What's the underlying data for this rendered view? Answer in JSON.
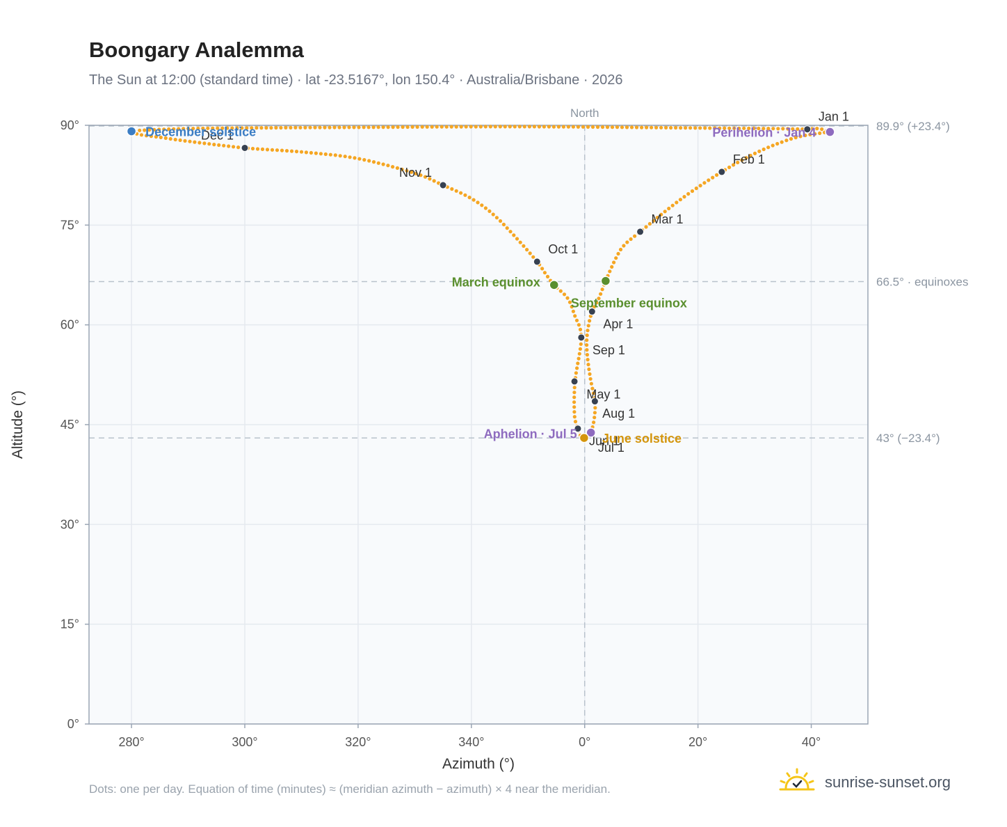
{
  "header": {
    "title": "Boongary Analemma",
    "subtitle": "The Sun at 12:00 (standard time) · lat -23.5167°, lon 150.4° · Australia/Brisbane · 2026"
  },
  "footer": {
    "note": "Dots: one per day. Equation of time (minutes) ≈ (meridian azimuth − azimuth) × 4 near the meridian.",
    "brand": "sunrise-sunset.org"
  },
  "colors": {
    "path": "#f5a623",
    "month_marker": "#374151",
    "december_solstice": "#3b7dc4",
    "june_solstice": "#d4950c",
    "equinox": "#5a8f2e",
    "apsis": "#8e6bbf",
    "grid": "#e5e9ef",
    "reference_line": "#b8c2cc",
    "plot_background": "#f8fafc",
    "brand_sun": "#f5c518"
  },
  "icons": {
    "brand": "sun-logo-icon"
  },
  "chart_data": {
    "type": "scatter",
    "xlabel": "Azimuth (°)",
    "ylabel": "Altitude (°)",
    "xlim": [
      -87.5,
      50
    ],
    "ylim": [
      0,
      90
    ],
    "x_ticks": [
      {
        "value": -80,
        "label": "280°"
      },
      {
        "value": -60,
        "label": "300°"
      },
      {
        "value": -40,
        "label": "320°"
      },
      {
        "value": -20,
        "label": "340°"
      },
      {
        "value": 0,
        "label": "0°"
      },
      {
        "value": 20,
        "label": "20°"
      },
      {
        "value": 40,
        "label": "40°"
      }
    ],
    "y_ticks": [
      {
        "value": 0,
        "label": "0°"
      },
      {
        "value": 15,
        "label": "15°"
      },
      {
        "value": 30,
        "label": "30°"
      },
      {
        "value": 45,
        "label": "45°"
      },
      {
        "value": 60,
        "label": "60°"
      },
      {
        "value": 75,
        "label": "75°"
      },
      {
        "value": 90,
        "label": "90°"
      }
    ],
    "grid": true,
    "meridian": {
      "x": 0,
      "label": "North"
    },
    "reference_lines": [
      {
        "y": 89.9,
        "label": "89.9° (+23.4°)"
      },
      {
        "y": 66.5,
        "label": "66.5° · equinoxes"
      },
      {
        "y": 43,
        "label": "43° (−23.4°)"
      }
    ],
    "series": [
      {
        "points": [
          [
            39.3,
            89.4
          ],
          [
            41.3,
            89.5
          ],
          [
            43.3,
            89.0
          ],
          [
            42.2,
            88.9
          ],
          [
            37.0,
            88.1
          ],
          [
            30.6,
            86.0
          ],
          [
            24.2,
            83.0
          ],
          [
            17.0,
            78.9
          ],
          [
            9.8,
            74.0
          ],
          [
            7.0,
            72.0
          ],
          [
            5.5,
            70.0
          ],
          [
            3.7,
            66.6
          ],
          [
            2.5,
            64.0
          ],
          [
            1.3,
            62.0
          ],
          [
            0.5,
            59.0
          ],
          [
            0.4,
            56.0
          ],
          [
            1.0,
            52.0
          ],
          [
            1.8,
            48.5
          ],
          [
            1.7,
            46.0
          ],
          [
            1.1,
            43.8
          ],
          [
            0.4,
            43.3
          ],
          [
            -0.1,
            43.0
          ],
          [
            -0.7,
            43.3
          ],
          [
            -1.2,
            44.4
          ],
          [
            -1.8,
            46.5
          ],
          [
            -1.7,
            51.5
          ],
          [
            -0.6,
            58.1
          ],
          [
            -1.8,
            61.5
          ],
          [
            -3.0,
            64.0
          ],
          [
            -5.4,
            66.0
          ],
          [
            -7.0,
            67.8
          ],
          [
            -8.4,
            69.5
          ],
          [
            -12.0,
            73.0
          ],
          [
            -16.0,
            76.5
          ],
          [
            -20.0,
            79.0
          ],
          [
            -25.0,
            81.0
          ],
          [
            -30.0,
            82.8
          ],
          [
            -40.0,
            85.0
          ],
          [
            -50.0,
            86.0
          ],
          [
            -60.0,
            86.6
          ],
          [
            -70.0,
            87.6
          ],
          [
            -75.0,
            88.2
          ],
          [
            -78.5,
            88.6
          ],
          [
            -80.0,
            89.1
          ],
          [
            -77.0,
            89.3
          ],
          [
            -70.0,
            89.5
          ],
          [
            -60.0,
            89.6
          ],
          [
            -40.0,
            89.7
          ],
          [
            -10.0,
            89.8
          ],
          [
            20.0,
            89.6
          ],
          [
            34.0,
            89.5
          ],
          [
            39.3,
            89.4
          ]
        ]
      }
    ],
    "month_markers": [
      {
        "label": "Jan 1",
        "x": 39.3,
        "y": 89.4
      },
      {
        "label": "Feb 1",
        "x": 24.2,
        "y": 83.0
      },
      {
        "label": "Mar 1",
        "x": 9.8,
        "y": 74.0
      },
      {
        "label": "Apr 1",
        "x": 1.3,
        "y": 62.0
      },
      {
        "label": "May 1",
        "x": 1.8,
        "y": 48.5
      },
      {
        "label": "Jun 1",
        "x": -1.2,
        "y": 44.4
      },
      {
        "label": "Jul 1",
        "x": -0.1,
        "y": 43.0
      },
      {
        "label": "Aug 1",
        "x": -1.8,
        "y": 51.5
      },
      {
        "label": "Sep 1",
        "x": -0.6,
        "y": 58.1
      },
      {
        "label": "Oct 1",
        "x": -8.4,
        "y": 69.5
      },
      {
        "label": "Nov 1",
        "x": -25.0,
        "y": 81.0
      },
      {
        "label": "Dec 1",
        "x": -60.0,
        "y": 86.6
      }
    ],
    "events": [
      {
        "label": "December solstice",
        "x": -80.0,
        "y": 89.1,
        "color_key": "december_solstice"
      },
      {
        "label": "Perihelion · Jan 4",
        "x": 43.3,
        "y": 89.0,
        "color_key": "apsis"
      },
      {
        "label": "March equinox",
        "x": -5.4,
        "y": 66.0,
        "color_key": "equinox"
      },
      {
        "label": "September equinox",
        "x": 3.7,
        "y": 66.6,
        "color_key": "equinox"
      },
      {
        "label": "Aphelion · Jul 5",
        "x": 1.1,
        "y": 43.8,
        "color_key": "apsis"
      },
      {
        "label": "June solstice",
        "x": -0.1,
        "y": 43.0,
        "color_key": "june_solstice"
      }
    ]
  }
}
